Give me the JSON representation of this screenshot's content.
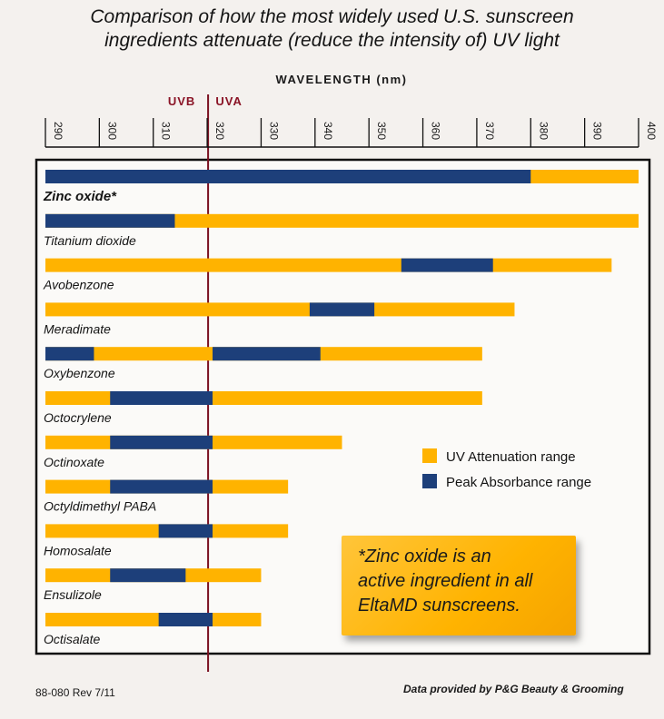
{
  "header": {
    "title_line1": "Comparison of how the most widely used U.S. sunscreen",
    "title_line2": "ingredients attenuate (reduce the intensity of) UV light"
  },
  "colors": {
    "attenuation": "#ffb300",
    "peak": "#1d3f7a",
    "divider": "#7a1020",
    "uv_label": "#8a1426"
  },
  "chart_data": {
    "type": "range-bar",
    "xlabel": "WAVELENGTH (nm)",
    "xlim": [
      290,
      400
    ],
    "xticks": [
      "290",
      "300",
      "310",
      "320",
      "330",
      "340",
      "350",
      "360",
      "370",
      "380",
      "390",
      "400"
    ],
    "regions": [
      {
        "label": "UVB",
        "range": [
          290,
          320
        ]
      },
      {
        "label": "UVA",
        "range": [
          320,
          400
        ]
      }
    ],
    "divider_nm": 320,
    "legend": [
      "UV Attenuation range",
      "Peak Absorbance range"
    ],
    "series": [
      {
        "name": "Zinc oxide*",
        "bold": true,
        "attenuation": [
          290,
          400
        ],
        "peak": [
          290,
          380
        ]
      },
      {
        "name": "Titanium dioxide",
        "attenuation": [
          290,
          400
        ],
        "peak": [
          290,
          314
        ]
      },
      {
        "name": "Avobenzone",
        "attenuation": [
          290,
          395
        ],
        "peak": [
          356,
          373
        ]
      },
      {
        "name": "Meradimate",
        "attenuation": [
          290,
          377
        ],
        "peak": [
          339,
          351
        ]
      },
      {
        "name": "Oxybenzone",
        "attenuation": [
          290,
          371
        ],
        "peak": [
          [
            290,
            299
          ],
          [
            321,
            341
          ]
        ]
      },
      {
        "name": "Octocrylene",
        "attenuation": [
          290,
          371
        ],
        "peak": [
          302,
          321
        ]
      },
      {
        "name": "Octinoxate",
        "attenuation": [
          290,
          345
        ],
        "peak": [
          302,
          321
        ]
      },
      {
        "name": "Octyldimethyl PABA",
        "attenuation": [
          290,
          335
        ],
        "peak": [
          302,
          321
        ]
      },
      {
        "name": "Homosalate",
        "attenuation": [
          290,
          335
        ],
        "peak": [
          311,
          321
        ]
      },
      {
        "name": "Ensulizole",
        "attenuation": [
          290,
          330
        ],
        "peak": [
          302,
          316
        ]
      },
      {
        "name": "Octisalate",
        "attenuation": [
          290,
          330
        ],
        "peak": [
          311,
          321
        ]
      }
    ]
  },
  "callout": {
    "line1": "*Zinc oxide is an",
    "line2": "active ingredient in all",
    "line3": "EltaMD sunscreens."
  },
  "footer": {
    "code": "88-080  Rev 7/11",
    "credit": "Data provided by P&G Beauty & Grooming"
  }
}
